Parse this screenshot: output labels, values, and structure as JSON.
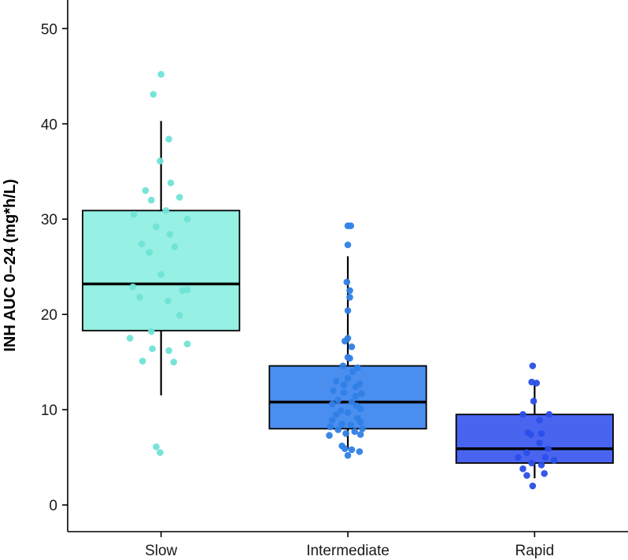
{
  "chart_data": {
    "type": "box",
    "title": "",
    "xlabel": "",
    "ylabel": "INH AUC 0–24 (mg*h/L)",
    "ylim": [
      -2.8,
      53
    ],
    "yticks": [
      0,
      10,
      20,
      30,
      40,
      50
    ],
    "grid": false,
    "categories": [
      "Slow",
      "Intermediate",
      "Rapid"
    ],
    "colors": [
      "#96f0e4",
      "#4a8ff0",
      "#4965f0"
    ],
    "point_colors": [
      "#6fe3d6",
      "#2f7fe6",
      "#2a4fe8"
    ],
    "boxes": [
      {
        "category": "Slow",
        "q1": 18.3,
        "median": 23.2,
        "q3": 30.9,
        "whisker_low": 11.5,
        "whisker_high": 40.3
      },
      {
        "category": "Intermediate",
        "q1": 8.0,
        "median": 10.8,
        "q3": 14.6,
        "whisker_low": 5.9,
        "whisker_high": 26.1
      },
      {
        "category": "Rapid",
        "q1": 4.4,
        "median": 5.9,
        "q3": 9.5,
        "whisker_low": 2.8,
        "whisker_high": 12.9
      }
    ],
    "points": [
      {
        "category": "Slow",
        "values": [
          45.2,
          43.1,
          38.4,
          36.1,
          33.8,
          33.0,
          32.3,
          32.0,
          30.9,
          30.5,
          30.0,
          29.2,
          28.4,
          27.4,
          27.1,
          26.5,
          24.2,
          22.9,
          22.6,
          22.5,
          21.8,
          21.4,
          19.9,
          18.2,
          17.5,
          16.9,
          16.4,
          16.2,
          15.1,
          15.0,
          6.1,
          5.5
        ],
        "offsets": [
          0.0,
          -0.08,
          0.08,
          -0.01,
          0.1,
          -0.16,
          0.19,
          -0.1,
          0.05,
          -0.28,
          0.27,
          -0.05,
          0.09,
          -0.2,
          0.14,
          -0.12,
          0.0,
          -0.29,
          0.27,
          0.22,
          -0.22,
          0.07,
          0.19,
          -0.1,
          -0.32,
          0.27,
          -0.09,
          0.08,
          -0.19,
          0.13,
          -0.05,
          -0.01
        ]
      },
      {
        "category": "Intermediate",
        "values": [
          29.3,
          29.3,
          27.3,
          23.4,
          22.5,
          21.8,
          20.4,
          17.5,
          17.2,
          16.6,
          15.5,
          15.4,
          14.6,
          14.4,
          14.0,
          13.3,
          13.0,
          12.7,
          12.6,
          12.4,
          12.0,
          11.8,
          11.7,
          11.4,
          11.0,
          10.8,
          10.6,
          10.4,
          10.1,
          9.9,
          9.7,
          9.5,
          9.1,
          8.9,
          8.7,
          8.5,
          8.4,
          8.2,
          8.0,
          7.9,
          7.7,
          7.5,
          7.4,
          7.3,
          6.2,
          5.9,
          5.8,
          5.6,
          5.2
        ],
        "offsets": [
          0.0,
          0.03,
          0.0,
          -0.01,
          0.02,
          0.02,
          0.0,
          0.0,
          -0.03,
          0.04,
          0.0,
          0.02,
          -0.05,
          0.1,
          0.05,
          0.0,
          -0.12,
          0.12,
          -0.04,
          0.08,
          -0.15,
          -0.04,
          0.14,
          0.08,
          -0.1,
          0.04,
          -0.16,
          0.09,
          0.13,
          -0.07,
          0.0,
          -0.12,
          0.1,
          -0.16,
          0.13,
          -0.06,
          0.03,
          -0.18,
          0.15,
          -0.1,
          0.07,
          -0.02,
          0.13,
          -0.19,
          -0.06,
          -0.03,
          0.04,
          0.12,
          0.0
        ]
      },
      {
        "category": "Rapid",
        "values": [
          14.6,
          12.9,
          12.8,
          10.9,
          9.5,
          9.5,
          8.9,
          7.6,
          7.5,
          7.4,
          6.5,
          5.9,
          5.5,
          5.0,
          5.0,
          4.7,
          4.4,
          4.2,
          3.8,
          3.3,
          3.1,
          2.0
        ],
        "offsets": [
          -0.02,
          -0.03,
          0.02,
          -0.01,
          -0.12,
          0.15,
          0.05,
          -0.07,
          0.07,
          -0.04,
          0.05,
          0.14,
          -0.08,
          -0.17,
          0.11,
          0.2,
          -0.03,
          0.07,
          -0.12,
          0.1,
          -0.08,
          -0.02
        ]
      }
    ]
  }
}
